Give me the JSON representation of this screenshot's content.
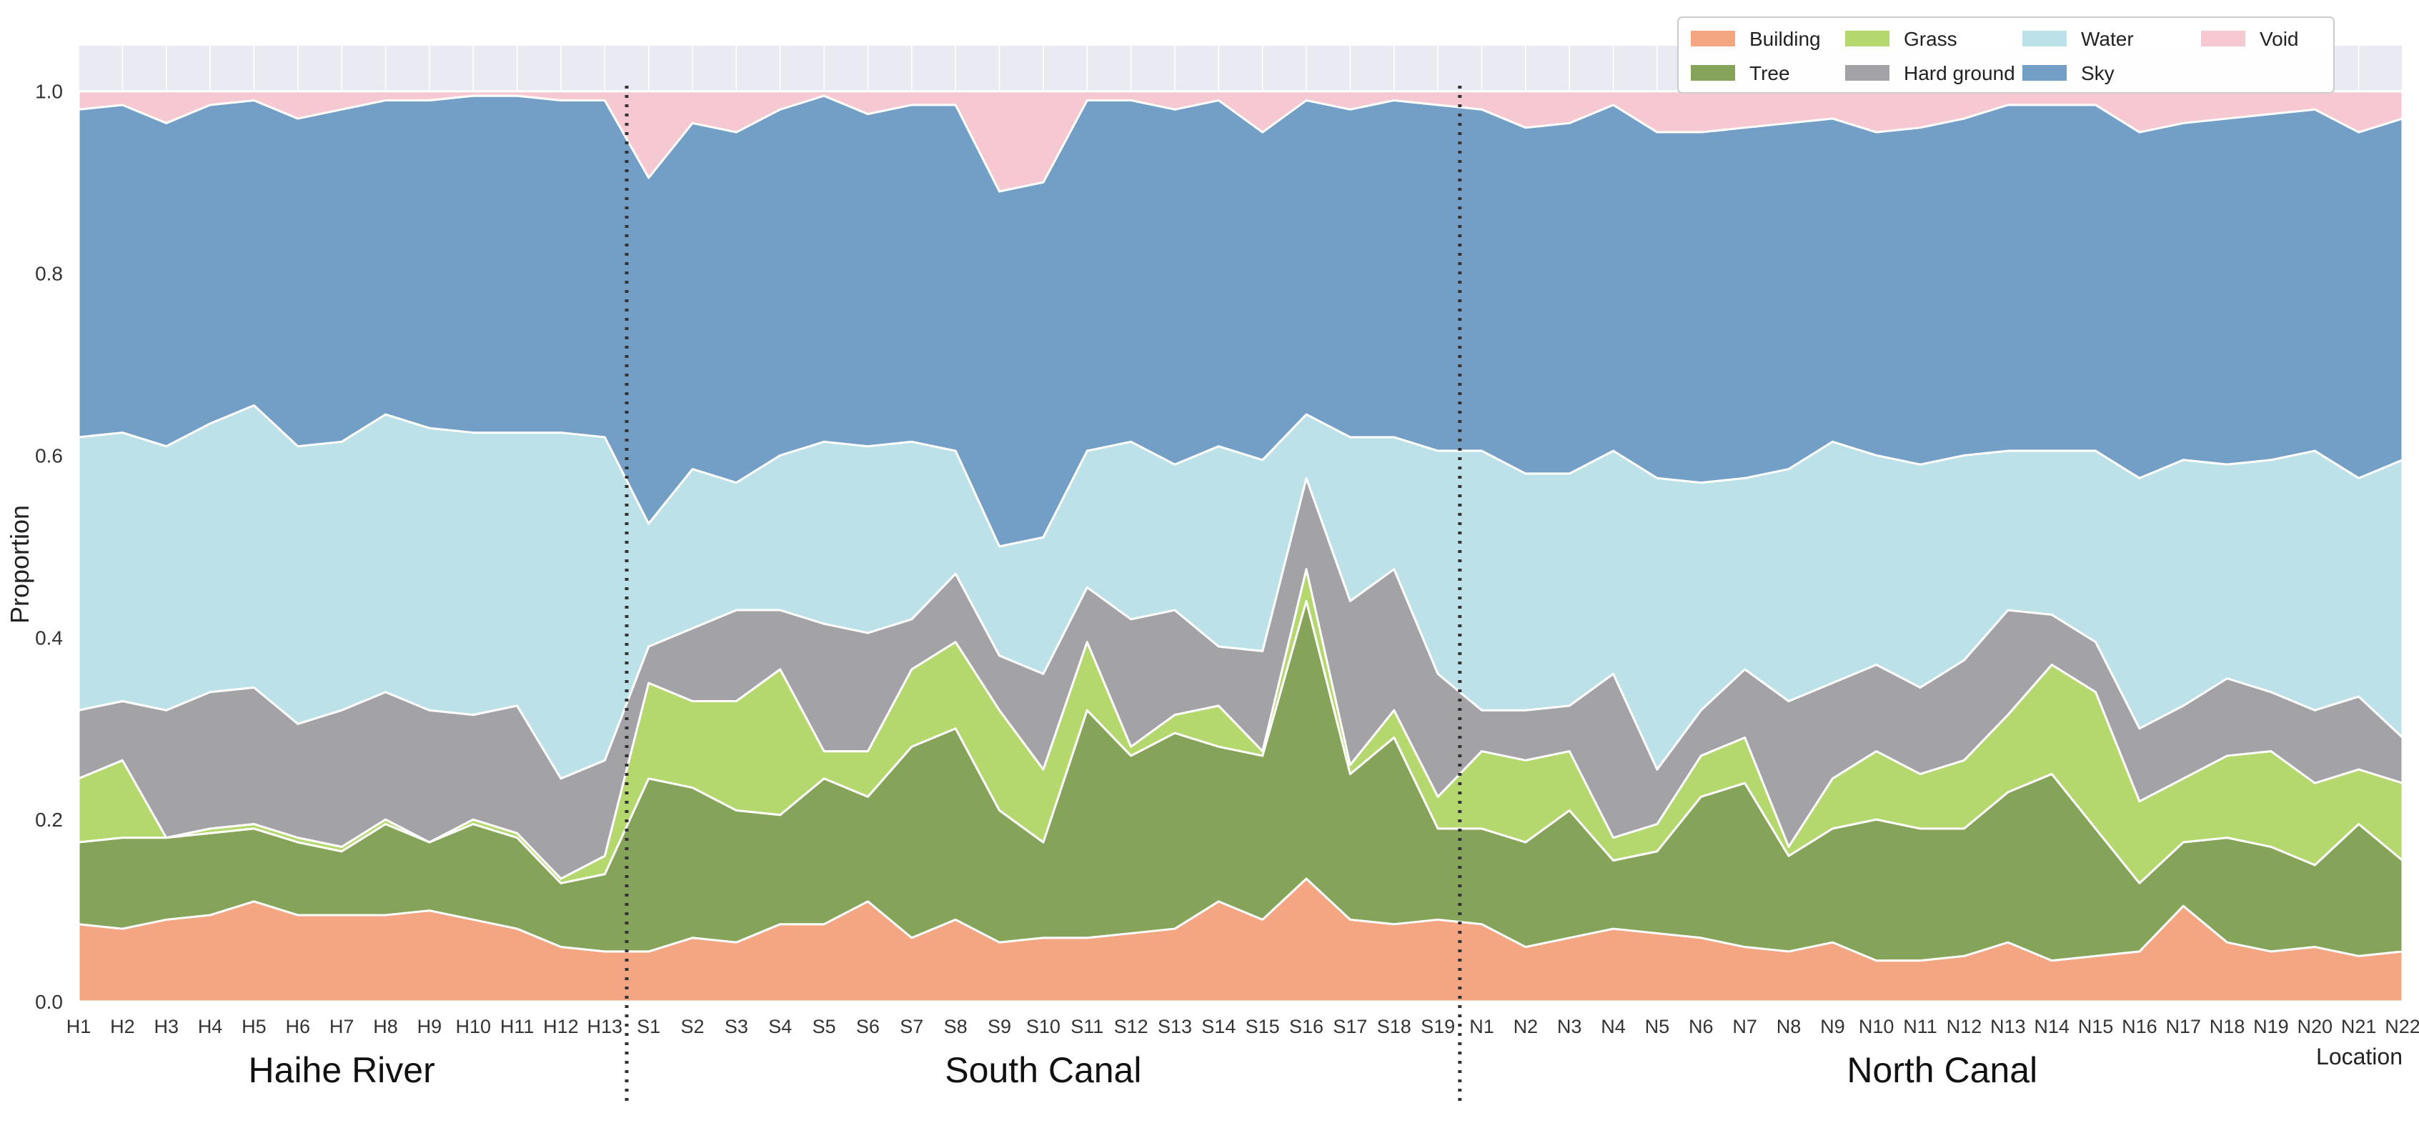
{
  "chart_data": {
    "type": "area",
    "stacked": true,
    "ylabel": "Proportion",
    "xlabel": "Location",
    "ylim": [
      0,
      1.05
    ],
    "yticks": [
      "0.0",
      "0.2",
      "0.4",
      "0.6",
      "0.8",
      "1.0"
    ],
    "grid": true,
    "legend_position": "top-right",
    "categories": [
      "H1",
      "H2",
      "H3",
      "H4",
      "H5",
      "H6",
      "H7",
      "H8",
      "H9",
      "H10",
      "H11",
      "H12",
      "H13",
      "S1",
      "S2",
      "S3",
      "S4",
      "S5",
      "S6",
      "S7",
      "S8",
      "S9",
      "S10",
      "S11",
      "S12",
      "S13",
      "S14",
      "S15",
      "S16",
      "S17",
      "S18",
      "S19",
      "N1",
      "N2",
      "N3",
      "N4",
      "N5",
      "N6",
      "N7",
      "N8",
      "N9",
      "N10",
      "N11",
      "N12",
      "N13",
      "N14",
      "N15",
      "N16",
      "N17",
      "N18",
      "N19",
      "N20",
      "N21",
      "N22"
    ],
    "groups": [
      {
        "label": "Haihe River",
        "start": 0,
        "end": 12
      },
      {
        "label": "South Canal",
        "start": 13,
        "end": 31
      },
      {
        "label": "North Canal",
        "start": 32,
        "end": 53
      }
    ],
    "dividers_after": [
      12,
      31
    ],
    "cumulative": true,
    "series": [
      {
        "name": "Building",
        "color": "#f4a582",
        "values": [
          0.085,
          0.08,
          0.09,
          0.095,
          0.11,
          0.095,
          0.095,
          0.095,
          0.1,
          0.09,
          0.08,
          0.06,
          0.055,
          0.055,
          0.07,
          0.065,
          0.085,
          0.085,
          0.11,
          0.07,
          0.09,
          0.065,
          0.07,
          0.07,
          0.075,
          0.08,
          0.11,
          0.09,
          0.135,
          0.09,
          0.085,
          0.09,
          0.085,
          0.06,
          0.07,
          0.08,
          0.075,
          0.07,
          0.06,
          0.055,
          0.065,
          0.045,
          0.045,
          0.05,
          0.065,
          0.045,
          0.05,
          0.055,
          0.105,
          0.065,
          0.055,
          0.06,
          0.05,
          0.055
        ]
      },
      {
        "name": "Tree",
        "color": "#86a35a",
        "values": [
          0.175,
          0.18,
          0.18,
          0.185,
          0.19,
          0.175,
          0.165,
          0.195,
          0.175,
          0.195,
          0.18,
          0.13,
          0.14,
          0.245,
          0.235,
          0.21,
          0.205,
          0.245,
          0.225,
          0.28,
          0.3,
          0.21,
          0.175,
          0.32,
          0.27,
          0.295,
          0.28,
          0.27,
          0.44,
          0.25,
          0.29,
          0.19,
          0.19,
          0.175,
          0.21,
          0.155,
          0.165,
          0.225,
          0.24,
          0.16,
          0.19,
          0.2,
          0.19,
          0.19,
          0.23,
          0.25,
          0.19,
          0.13,
          0.175,
          0.18,
          0.17,
          0.15,
          0.195,
          0.155
        ]
      },
      {
        "name": "Grass",
        "color": "#b5d86e",
        "values": [
          0.245,
          0.265,
          0.18,
          0.19,
          0.195,
          0.18,
          0.17,
          0.2,
          0.175,
          0.2,
          0.185,
          0.135,
          0.16,
          0.35,
          0.33,
          0.33,
          0.365,
          0.275,
          0.275,
          0.365,
          0.395,
          0.32,
          0.255,
          0.395,
          0.28,
          0.315,
          0.325,
          0.275,
          0.475,
          0.26,
          0.32,
          0.225,
          0.275,
          0.265,
          0.275,
          0.18,
          0.195,
          0.27,
          0.29,
          0.17,
          0.245,
          0.275,
          0.25,
          0.265,
          0.315,
          0.37,
          0.34,
          0.22,
          0.245,
          0.27,
          0.275,
          0.24,
          0.255,
          0.24
        ]
      },
      {
        "name": "Hard ground",
        "color": "#a3a2a6",
        "values": [
          0.32,
          0.33,
          0.32,
          0.34,
          0.345,
          0.305,
          0.32,
          0.34,
          0.32,
          0.315,
          0.325,
          0.245,
          0.265,
          0.39,
          0.41,
          0.43,
          0.43,
          0.415,
          0.405,
          0.42,
          0.47,
          0.38,
          0.36,
          0.455,
          0.42,
          0.43,
          0.39,
          0.385,
          0.575,
          0.44,
          0.475,
          0.36,
          0.32,
          0.32,
          0.325,
          0.36,
          0.255,
          0.32,
          0.365,
          0.33,
          0.35,
          0.37,
          0.345,
          0.375,
          0.43,
          0.425,
          0.395,
          0.3,
          0.325,
          0.355,
          0.34,
          0.32,
          0.335,
          0.29
        ]
      },
      {
        "name": "Water",
        "color": "#bde1e8",
        "values": [
          0.62,
          0.625,
          0.61,
          0.635,
          0.655,
          0.61,
          0.615,
          0.645,
          0.63,
          0.625,
          0.625,
          0.625,
          0.62,
          0.525,
          0.585,
          0.57,
          0.6,
          0.615,
          0.61,
          0.615,
          0.605,
          0.5,
          0.51,
          0.605,
          0.615,
          0.59,
          0.61,
          0.595,
          0.645,
          0.62,
          0.62,
          0.605,
          0.605,
          0.58,
          0.58,
          0.605,
          0.575,
          0.57,
          0.575,
          0.585,
          0.615,
          0.6,
          0.59,
          0.6,
          0.605,
          0.605,
          0.605,
          0.575,
          0.595,
          0.59,
          0.595,
          0.605,
          0.575,
          0.595
        ]
      },
      {
        "name": "Sky",
        "color": "#739fc6",
        "values": [
          0.98,
          0.985,
          0.965,
          0.985,
          0.99,
          0.97,
          0.98,
          0.99,
          0.99,
          0.995,
          0.995,
          0.99,
          0.99,
          0.905,
          0.965,
          0.955,
          0.98,
          0.995,
          0.975,
          0.985,
          0.985,
          0.89,
          0.9,
          0.99,
          0.99,
          0.98,
          0.99,
          0.955,
          0.99,
          0.98,
          0.99,
          0.985,
          0.98,
          0.96,
          0.965,
          0.985,
          0.955,
          0.955,
          0.96,
          0.965,
          0.97,
          0.955,
          0.96,
          0.97,
          0.985,
          0.985,
          0.985,
          0.955,
          0.965,
          0.97,
          0.975,
          0.98,
          0.955,
          0.97
        ]
      },
      {
        "name": "Void",
        "color": "#f6c8d2",
        "values": [
          1,
          1,
          1,
          1,
          1,
          1,
          1,
          1,
          1,
          1,
          1,
          1,
          1,
          1,
          1,
          1,
          1,
          1,
          1,
          1,
          1,
          1,
          1,
          1,
          1,
          1,
          1,
          1,
          1,
          1,
          1,
          1,
          1,
          1,
          1,
          1,
          1,
          1,
          1,
          1,
          1,
          1,
          1,
          1,
          1,
          1,
          1,
          1,
          1,
          1,
          1,
          1,
          1,
          1
        ]
      }
    ],
    "legend_order": [
      "Building",
      "Tree",
      "Grass",
      "Hard ground",
      "Water",
      "Sky",
      "Void"
    ]
  }
}
